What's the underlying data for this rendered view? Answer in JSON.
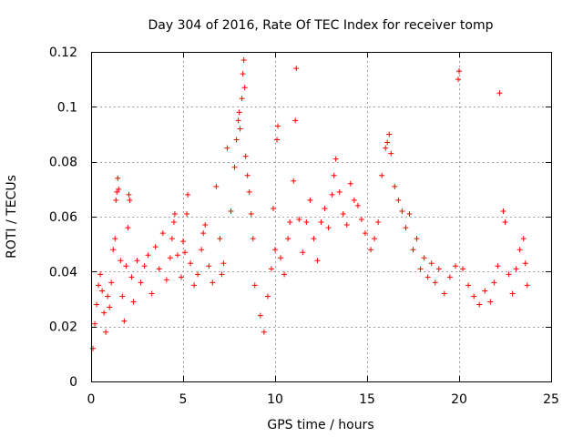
{
  "chart_data": {
    "type": "scatter",
    "title": "Day 304 of 2016, Rate Of TEC Index for receiver tomp",
    "xlabel": "GPS time / hours",
    "ylabel": "ROTI / TECUs",
    "xlim": [
      0,
      25
    ],
    "ylim": [
      0,
      0.12
    ],
    "xticks": [
      0,
      5,
      10,
      15,
      20,
      25
    ],
    "xtick_labels": [
      "0",
      "5",
      "10",
      "15",
      "20",
      "25"
    ],
    "yticks": [
      0,
      0.02,
      0.04,
      0.06,
      0.08,
      0.1,
      0.12
    ],
    "ytick_labels": [
      "0",
      "0.02",
      "0.04",
      "0.06",
      "0.08",
      "0.1",
      "0.12"
    ],
    "grid": true,
    "marker": "+",
    "color": "#ff0000",
    "series": [
      {
        "name": "ROTI",
        "points": [
          [
            0.1,
            0.012
          ],
          [
            0.2,
            0.021
          ],
          [
            0.3,
            0.028
          ],
          [
            0.4,
            0.035
          ],
          [
            0.5,
            0.039
          ],
          [
            0.6,
            0.033
          ],
          [
            0.7,
            0.025
          ],
          [
            0.8,
            0.018
          ],
          [
            0.9,
            0.031
          ],
          [
            1.0,
            0.027
          ],
          [
            1.1,
            0.036
          ],
          [
            1.2,
            0.048
          ],
          [
            1.3,
            0.052
          ],
          [
            1.35,
            0.066
          ],
          [
            1.4,
            0.069
          ],
          [
            1.45,
            0.074
          ],
          [
            1.5,
            0.07
          ],
          [
            1.6,
            0.044
          ],
          [
            1.7,
            0.031
          ],
          [
            1.8,
            0.022
          ],
          [
            1.9,
            0.042
          ],
          [
            2.0,
            0.056
          ],
          [
            2.05,
            0.068
          ],
          [
            2.1,
            0.066
          ],
          [
            2.2,
            0.038
          ],
          [
            2.3,
            0.029
          ],
          [
            2.5,
            0.044
          ],
          [
            2.7,
            0.036
          ],
          [
            2.9,
            0.042
          ],
          [
            3.1,
            0.046
          ],
          [
            3.3,
            0.032
          ],
          [
            3.5,
            0.049
          ],
          [
            3.7,
            0.041
          ],
          [
            3.9,
            0.054
          ],
          [
            4.1,
            0.037
          ],
          [
            4.3,
            0.045
          ],
          [
            4.4,
            0.052
          ],
          [
            4.5,
            0.058
          ],
          [
            4.55,
            0.061
          ],
          [
            4.7,
            0.046
          ],
          [
            4.9,
            0.038
          ],
          [
            5.0,
            0.051
          ],
          [
            5.1,
            0.047
          ],
          [
            5.2,
            0.061
          ],
          [
            5.25,
            0.068
          ],
          [
            5.4,
            0.043
          ],
          [
            5.6,
            0.035
          ],
          [
            5.8,
            0.039
          ],
          [
            6.0,
            0.048
          ],
          [
            6.1,
            0.054
          ],
          [
            6.2,
            0.057
          ],
          [
            6.4,
            0.042
          ],
          [
            6.6,
            0.036
          ],
          [
            6.8,
            0.071
          ],
          [
            7.0,
            0.052
          ],
          [
            7.1,
            0.039
          ],
          [
            7.2,
            0.043
          ],
          [
            7.4,
            0.085
          ],
          [
            7.6,
            0.062
          ],
          [
            7.8,
            0.078
          ],
          [
            7.9,
            0.088
          ],
          [
            8.0,
            0.095
          ],
          [
            8.05,
            0.098
          ],
          [
            8.1,
            0.092
          ],
          [
            8.2,
            0.103
          ],
          [
            8.25,
            0.112
          ],
          [
            8.3,
            0.117
          ],
          [
            8.35,
            0.107
          ],
          [
            8.4,
            0.082
          ],
          [
            8.5,
            0.075
          ],
          [
            8.6,
            0.069
          ],
          [
            8.7,
            0.061
          ],
          [
            8.8,
            0.052
          ],
          [
            8.9,
            0.035
          ],
          [
            9.2,
            0.024
          ],
          [
            9.4,
            0.018
          ],
          [
            9.6,
            0.031
          ],
          [
            9.8,
            0.041
          ],
          [
            9.9,
            0.063
          ],
          [
            10.0,
            0.048
          ],
          [
            10.1,
            0.088
          ],
          [
            10.15,
            0.093
          ],
          [
            10.3,
            0.045
          ],
          [
            10.5,
            0.039
          ],
          [
            10.7,
            0.052
          ],
          [
            10.8,
            0.058
          ],
          [
            11.0,
            0.073
          ],
          [
            11.1,
            0.095
          ],
          [
            11.15,
            0.114
          ],
          [
            11.3,
            0.059
          ],
          [
            11.5,
            0.047
          ],
          [
            11.7,
            0.058
          ],
          [
            11.9,
            0.066
          ],
          [
            12.1,
            0.052
          ],
          [
            12.3,
            0.044
          ],
          [
            12.5,
            0.058
          ],
          [
            12.7,
            0.063
          ],
          [
            12.9,
            0.056
          ],
          [
            13.1,
            0.068
          ],
          [
            13.2,
            0.075
          ],
          [
            13.3,
            0.081
          ],
          [
            13.5,
            0.069
          ],
          [
            13.7,
            0.061
          ],
          [
            13.9,
            0.057
          ],
          [
            14.1,
            0.072
          ],
          [
            14.3,
            0.066
          ],
          [
            14.5,
            0.064
          ],
          [
            14.7,
            0.059
          ],
          [
            14.9,
            0.054
          ],
          [
            15.2,
            0.048
          ],
          [
            15.4,
            0.052
          ],
          [
            15.6,
            0.058
          ],
          [
            15.8,
            0.075
          ],
          [
            16.0,
            0.085
          ],
          [
            16.1,
            0.087
          ],
          [
            16.2,
            0.09
          ],
          [
            16.3,
            0.083
          ],
          [
            16.5,
            0.071
          ],
          [
            16.7,
            0.066
          ],
          [
            16.9,
            0.062
          ],
          [
            17.1,
            0.056
          ],
          [
            17.3,
            0.061
          ],
          [
            17.5,
            0.048
          ],
          [
            17.7,
            0.052
          ],
          [
            17.9,
            0.041
          ],
          [
            18.1,
            0.045
          ],
          [
            18.3,
            0.038
          ],
          [
            18.5,
            0.043
          ],
          [
            18.7,
            0.036
          ],
          [
            18.9,
            0.041
          ],
          [
            19.2,
            0.032
          ],
          [
            19.5,
            0.038
          ],
          [
            19.8,
            0.042
          ],
          [
            19.95,
            0.11
          ],
          [
            20.0,
            0.113
          ],
          [
            20.2,
            0.041
          ],
          [
            20.5,
            0.035
          ],
          [
            20.8,
            0.031
          ],
          [
            21.1,
            0.028
          ],
          [
            21.4,
            0.033
          ],
          [
            21.7,
            0.029
          ],
          [
            21.9,
            0.036
          ],
          [
            22.1,
            0.042
          ],
          [
            22.2,
            0.105
          ],
          [
            22.4,
            0.062
          ],
          [
            22.5,
            0.058
          ],
          [
            22.7,
            0.039
          ],
          [
            22.9,
            0.032
          ],
          [
            23.1,
            0.041
          ],
          [
            23.3,
            0.048
          ],
          [
            23.5,
            0.052
          ],
          [
            23.6,
            0.043
          ],
          [
            23.7,
            0.035
          ]
        ]
      }
    ]
  }
}
